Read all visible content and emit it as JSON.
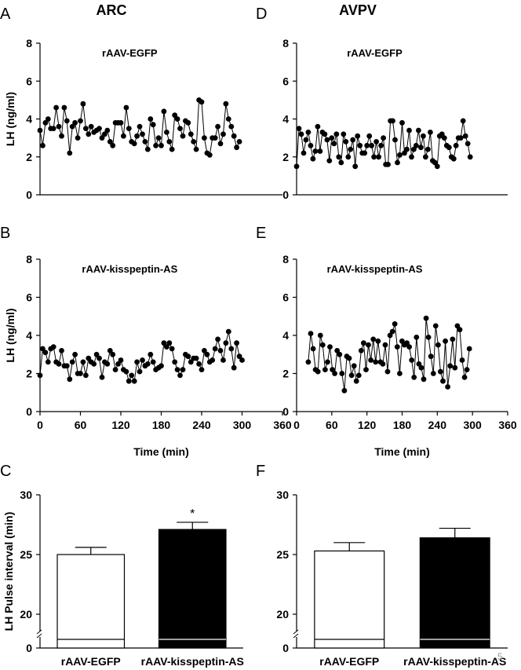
{
  "column_titles": {
    "left": "ARC",
    "right": "AVPV"
  },
  "panel_letters": {
    "A": "A",
    "B": "B",
    "C": "C",
    "D": "D",
    "E": "E",
    "F": "F"
  },
  "page_number": "5",
  "chart_data": [
    {
      "panel": "A",
      "type": "line",
      "title": "rAAV-EGFP",
      "ylabel": "LH (ng/ml)",
      "xlabel": "",
      "ylim": [
        0,
        8
      ],
      "yticks": [
        0,
        2,
        4,
        6,
        8
      ],
      "xlim": [
        0,
        360
      ],
      "xticks": [],
      "x_start": 0,
      "x_step": 4,
      "values": [
        3.4,
        2.6,
        3.8,
        4.0,
        3.5,
        3.5,
        4.6,
        3.6,
        3.1,
        4.6,
        3.9,
        2.2,
        3.6,
        3.8,
        3.0,
        3.9,
        4.8,
        3.5,
        3.2,
        3.6,
        3.3,
        3.4,
        3.5,
        3.0,
        3.2,
        3.4,
        2.8,
        2.6,
        3.8,
        3.8,
        3.8,
        3.1,
        4.6,
        3.5,
        2.8,
        2.7,
        3.1,
        3.6,
        3.2,
        2.8,
        2.4,
        4.0,
        3.7,
        2.6,
        3.0,
        2.6,
        4.4,
        3.3,
        2.8,
        2.4,
        4.2,
        4.0,
        3.5,
        3.1,
        3.9,
        3.8,
        3.2,
        2.8,
        2.4,
        5.0,
        4.9,
        3.0,
        2.2,
        2.1,
        3.0,
        3.0,
        3.6,
        2.7,
        3.2,
        4.8,
        4.0,
        3.6,
        3.1,
        2.5,
        2.8
      ]
    },
    {
      "panel": "B",
      "type": "line",
      "title": "rAAV-kisspeptin-AS",
      "ylabel": "LH (ng/ml)",
      "xlabel": "Time (min)",
      "ylim": [
        0,
        8
      ],
      "yticks": [
        0,
        2,
        4,
        6,
        8
      ],
      "xlim": [
        0,
        360
      ],
      "xticks": [
        0,
        60,
        120,
        180,
        240,
        300,
        360
      ],
      "x_start": 0,
      "x_step": 4,
      "values": [
        1.9,
        3.3,
        3.1,
        2.6,
        3.3,
        3.4,
        2.6,
        2.5,
        3.2,
        2.4,
        2.4,
        1.7,
        2.6,
        3.0,
        2.0,
        2.0,
        2.6,
        1.9,
        2.8,
        2.6,
        2.5,
        3.0,
        2.8,
        1.8,
        2.6,
        2.5,
        3.2,
        3.0,
        2.2,
        2.5,
        2.7,
        2.2,
        2.1,
        1.6,
        1.9,
        1.6,
        2.6,
        2.1,
        2.7,
        2.4,
        2.5,
        3.0,
        2.6,
        2.2,
        2.3,
        2.4,
        3.6,
        3.4,
        3.6,
        3.3,
        2.6,
        2.2,
        1.9,
        2.2,
        3.0,
        2.9,
        2.6,
        2.8,
        2.8,
        2.5,
        2.2,
        3.2,
        3.0,
        2.6,
        2.7,
        3.3,
        3.8,
        3.2,
        2.7,
        3.6,
        4.2,
        3.3,
        2.3,
        3.6,
        2.9,
        2.7
      ]
    },
    {
      "panel": "D",
      "type": "line",
      "title": "rAAV-EGFP",
      "ylabel": "",
      "xlabel": "",
      "ylim": [
        0,
        8
      ],
      "yticks": [
        0,
        2,
        4,
        6,
        8
      ],
      "xlim": [
        0,
        360
      ],
      "xticks": [],
      "x_start": 0,
      "x_step": 4,
      "values": [
        1.5,
        3.5,
        3.2,
        2.2,
        2.9,
        3.3,
        2.6,
        1.9,
        2.3,
        3.6,
        2.3,
        3.3,
        3.2,
        2.9,
        1.8,
        3.0,
        2.7,
        3.2,
        2.0,
        1.7,
        3.2,
        2.8,
        2.0,
        2.4,
        2.9,
        1.5,
        3.1,
        2.6,
        2.2,
        2.2,
        2.6,
        3.1,
        2.6,
        2.0,
        2.8,
        2.0,
        2.6,
        3.0,
        1.6,
        1.6,
        3.9,
        3.9,
        2.9,
        1.7,
        2.1,
        3.8,
        2.2,
        2.4,
        3.4,
        2.0,
        2.4,
        2.6,
        3.4,
        2.5,
        3.1,
        2.0,
        2.4,
        3.3,
        1.8,
        1.7,
        1.5,
        3.1,
        3.2,
        3.0,
        2.6,
        2.5,
        2.0,
        1.9,
        2.6,
        3.0,
        3.0,
        3.9,
        3.1,
        2.7,
        2.0
      ]
    },
    {
      "panel": "E",
      "type": "line",
      "title": "rAAV-kisspeptin-AS",
      "ylabel": "",
      "xlabel": "Time (min)",
      "ylim": [
        0,
        8
      ],
      "yticks": [
        0,
        2,
        4,
        6,
        8
      ],
      "xlim": [
        0,
        360
      ],
      "xticks": [
        0,
        60,
        120,
        180,
        240,
        300,
        360
      ],
      "x_start": 20,
      "x_step": 4.1,
      "values": [
        2.6,
        4.1,
        3.3,
        2.2,
        2.1,
        4.0,
        3.5,
        2.2,
        2.6,
        3.4,
        2.2,
        2.0,
        3.2,
        3.0,
        2.0,
        1.1,
        2.9,
        2.8,
        1.9,
        2.4,
        1.6,
        1.9,
        3.2,
        3.6,
        2.2,
        3.5,
        2.7,
        3.8,
        2.6,
        3.7,
        2.6,
        2.5,
        3.5,
        2.1,
        4.0,
        4.2,
        4.6,
        3.4,
        2.0,
        3.7,
        3.5,
        3.6,
        3.4,
        2.7,
        1.8,
        3.9,
        2.5,
        2.3,
        1.7,
        4.9,
        3.9,
        2.9,
        2.0,
        4.5,
        3.5,
        2.1,
        1.6,
        3.7,
        1.3,
        2.4,
        3.8,
        2.3,
        4.5,
        4.3,
        2.7,
        1.8,
        2.2,
        3.3
      ]
    },
    {
      "panel": "C",
      "type": "bar",
      "title": "",
      "ylabel": "LH Pulse interval (min)",
      "xlabel": "",
      "ylim": [
        20,
        30
      ],
      "yticks": [
        20,
        25,
        30
      ],
      "axis_break": true,
      "axis_zero_label": "0",
      "categories": [
        "rAAV-EGFP",
        "rAAV-kisspeptin-AS"
      ],
      "values": [
        25.0,
        27.1
      ],
      "errors": [
        0.6,
        0.6
      ],
      "bar_colors": [
        "#ffffff",
        "#000000"
      ],
      "significance": [
        "",
        "*"
      ]
    },
    {
      "panel": "F",
      "type": "bar",
      "title": "",
      "ylabel": "",
      "xlabel": "",
      "ylim": [
        20,
        30
      ],
      "yticks": [
        20,
        25,
        30
      ],
      "axis_break": true,
      "axis_zero_label": "0",
      "categories": [
        "rAAV-EGFP",
        "rAAV-kisspeptin-AS"
      ],
      "values": [
        25.3,
        26.4
      ],
      "errors": [
        0.7,
        0.8
      ],
      "bar_colors": [
        "#ffffff",
        "#000000"
      ],
      "significance": [
        "",
        ""
      ]
    }
  ]
}
